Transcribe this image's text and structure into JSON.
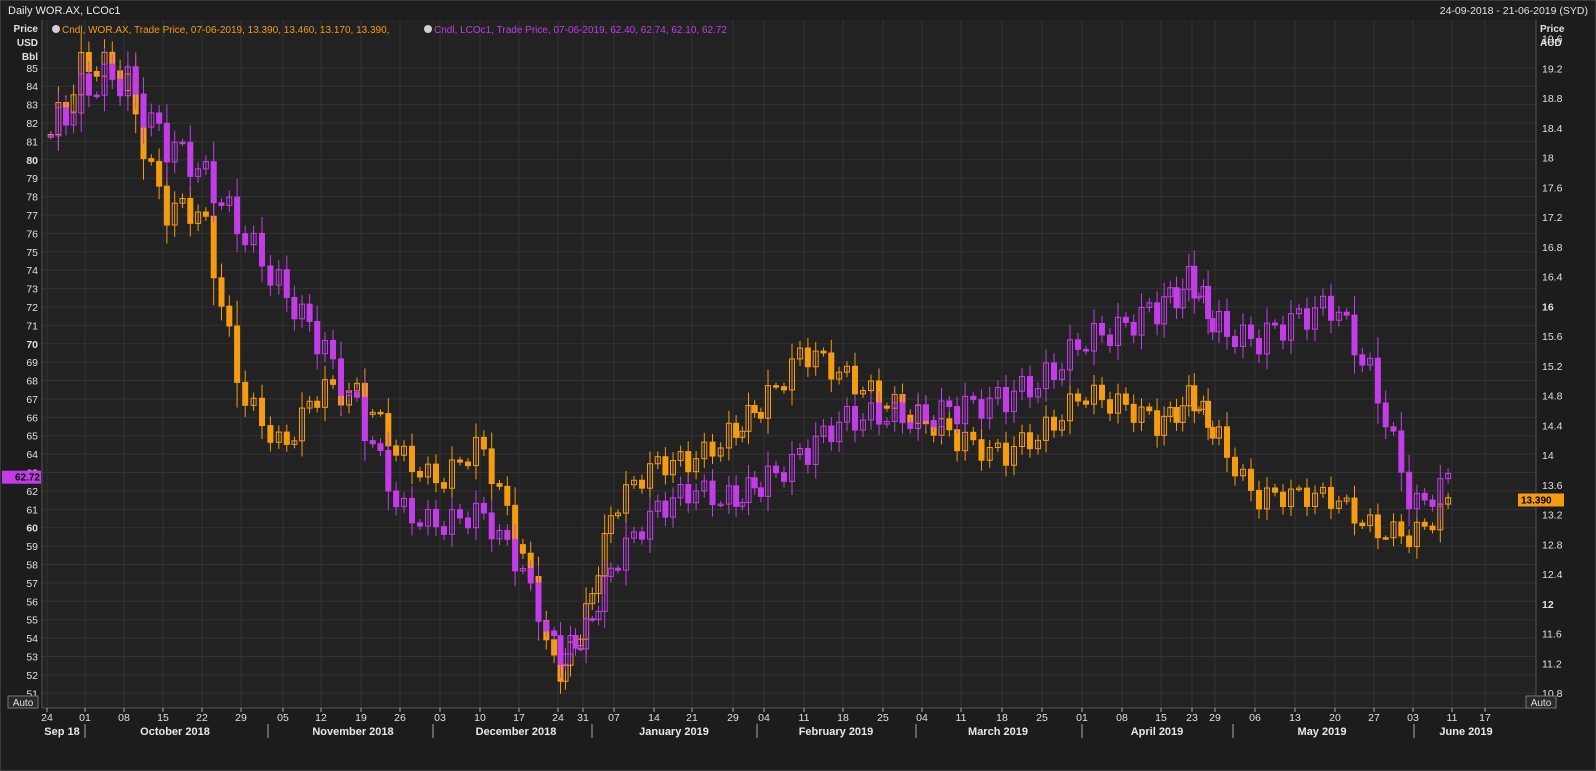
{
  "header": {
    "title": "Daily WOR.AX, LCOc1",
    "date_range": "24-09-2018 - 21-06-2019 (SYD)"
  },
  "legend": {
    "wor": "Cndl, WOR.AX, Trade Price, 07-06-2019, 13.390, 13.460, 13.170, 13.390,",
    "lco": "Cndl, LCOc1, Trade Price, 07-06-2019, 62.40, 62.74, 62.10, 62.72"
  },
  "left_axis": {
    "label_lines": [
      "Price",
      "USD",
      "Bbl"
    ],
    "ticks": [
      85,
      84,
      83,
      82,
      81,
      80,
      79,
      78,
      77,
      76,
      75,
      74,
      73,
      72,
      71,
      70,
      69,
      68,
      67,
      66,
      65,
      64,
      63,
      62,
      61,
      60,
      59,
      58,
      57,
      56,
      55,
      54,
      53,
      52,
      51
    ],
    "bold_ticks": [
      80,
      70,
      60
    ],
    "current": "62.72"
  },
  "right_axis": {
    "label_lines": [
      "Price",
      "AUD"
    ],
    "ticks": [
      "19.6",
      "19.2",
      "18.8",
      "18.4",
      "18",
      "17.6",
      "17.2",
      "16.8",
      "16.4",
      "16",
      "15.6",
      "15.2",
      "14.8",
      "14.4",
      "14",
      "13.6",
      "13.2",
      "12.8",
      "12.4",
      "12",
      "11.6",
      "11.2",
      "10.8"
    ],
    "bold_ticks": [
      "16",
      "12"
    ],
    "current": "13.390"
  },
  "auto_left": "Auto",
  "auto_right": "Auto",
  "x_axis": {
    "days": [
      "24",
      "01",
      "08",
      "15",
      "22",
      "29",
      "05",
      "12",
      "19",
      "26",
      "03",
      "10",
      "17",
      "24",
      "31",
      "07",
      "14",
      "21",
      "29",
      "04",
      "11",
      "18",
      "25",
      "04",
      "11",
      "18",
      "25",
      "01",
      "08",
      "15",
      "23",
      "29",
      "06",
      "13",
      "20",
      "27",
      "03",
      "11",
      "17"
    ],
    "months": [
      "Sep 18",
      "October 2018",
      "November 2018",
      "December 2018",
      "January 2019",
      "February 2019",
      "March 2019",
      "April 2019",
      "May 2019",
      "June 2019"
    ]
  },
  "chart_data": {
    "type": "candlestick",
    "colors": {
      "wor": "#f39c12",
      "lco": "#c23de8",
      "background": "#1c1c1c",
      "grid": "#333333"
    },
    "left_ylim": [
      50.2,
      87.6
    ],
    "right_ylim": [
      10.6,
      19.85
    ],
    "series": [
      {
        "name": "WOR.AX",
        "axis": "right",
        "weekly_close": [
          18.2,
          19.3,
          19.1,
          17.3,
          17.3,
          14.8,
          14.1,
          14.9,
          14.8,
          14.0,
          13.6,
          14.2,
          12.8,
          11.0,
          11.7,
          13.3,
          13.9,
          13.9,
          14.3,
          14.7,
          15.4,
          15.1,
          14.7,
          14.5,
          14.2,
          14.0,
          14.3,
          14.8,
          14.7,
          14.4,
          14.8,
          14.3,
          13.4,
          13.5,
          13.4,
          13.0,
          12.9,
          13.39
        ],
        "current": 13.39
      },
      {
        "name": "LCOc1",
        "axis": "left",
        "weekly_close": [
          81,
          84,
          84.5,
          81,
          79.5,
          76,
          73,
          70,
          66,
          61,
          60,
          61,
          58,
          53,
          54,
          58,
          61,
          62,
          61.5,
          62.5,
          64,
          66,
          66,
          66,
          66.5,
          67,
          68,
          70,
          71,
          72,
          73.5,
          71,
          70,
          71.5,
          72,
          68,
          61,
          62.72
        ],
        "current": 62.72
      }
    ]
  }
}
